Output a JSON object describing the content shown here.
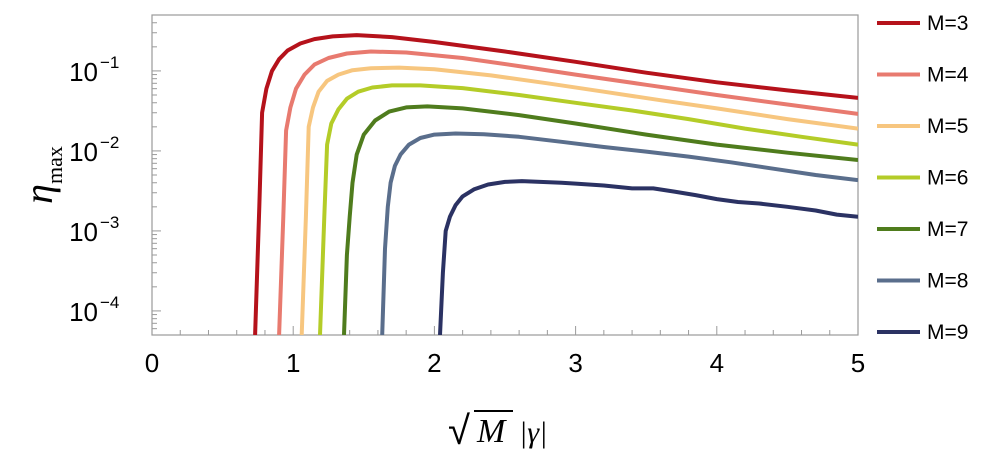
{
  "chart_data": {
    "type": "line",
    "x_label": {
      "sqrt_symbol": "√",
      "radicand": "M",
      "rest": "|γ|"
    },
    "y_label": {
      "main": "η",
      "subscript": "max"
    },
    "xlim": [
      0,
      5
    ],
    "ylim": [
      5e-05,
      0.5
    ],
    "y_scale": "log",
    "x_ticks": [
      "0",
      "1",
      "2",
      "3",
      "4",
      "5"
    ],
    "y_ticks": [
      {
        "base": "10",
        "exp": "−1"
      },
      {
        "base": "10",
        "exp": "−2"
      },
      {
        "base": "10",
        "exp": "−3"
      },
      {
        "base": "10",
        "exp": "−4"
      }
    ],
    "grid": false,
    "legend_position": "right",
    "series": [
      {
        "name": "M=3",
        "color": "#b5121b",
        "x": [
          0.73,
          0.76,
          0.78,
          0.81,
          0.85,
          0.9,
          0.96,
          1.05,
          1.15,
          1.28,
          1.45,
          1.7,
          2.0,
          2.5,
          3.0,
          3.5,
          4.0,
          4.5,
          5.0
        ],
        "y": [
          5e-05,
          0.002,
          0.03,
          0.06,
          0.1,
          0.14,
          0.18,
          0.22,
          0.25,
          0.27,
          0.28,
          0.265,
          0.23,
          0.175,
          0.13,
          0.095,
          0.072,
          0.057,
          0.046
        ]
      },
      {
        "name": "M=4",
        "color": "#e87a6f",
        "x": [
          0.9,
          0.93,
          0.95,
          0.98,
          1.02,
          1.08,
          1.15,
          1.25,
          1.38,
          1.55,
          1.8,
          2.2,
          2.6,
          3.0,
          3.5,
          4.0,
          4.5,
          5.0
        ],
        "y": [
          5e-05,
          0.0015,
          0.018,
          0.035,
          0.06,
          0.09,
          0.12,
          0.145,
          0.165,
          0.175,
          0.17,
          0.145,
          0.115,
          0.09,
          0.067,
          0.05,
          0.038,
          0.029
        ]
      },
      {
        "name": "M=5",
        "color": "#f7c67f",
        "x": [
          1.06,
          1.09,
          1.11,
          1.14,
          1.18,
          1.24,
          1.32,
          1.42,
          1.55,
          1.75,
          2.0,
          2.4,
          2.8,
          3.2,
          3.6,
          4.0,
          4.5,
          5.0
        ],
        "y": [
          5e-05,
          0.0015,
          0.02,
          0.035,
          0.055,
          0.075,
          0.09,
          0.102,
          0.108,
          0.11,
          0.105,
          0.088,
          0.07,
          0.055,
          0.043,
          0.034,
          0.025,
          0.019
        ]
      },
      {
        "name": "M=6",
        "color": "#b4cc28",
        "x": [
          1.19,
          1.22,
          1.24,
          1.27,
          1.32,
          1.38,
          1.46,
          1.56,
          1.7,
          1.9,
          2.2,
          2.6,
          3.0,
          3.4,
          3.8,
          4.2,
          4.6,
          5.0
        ],
        "y": [
          5e-05,
          0.0015,
          0.012,
          0.022,
          0.033,
          0.045,
          0.055,
          0.062,
          0.066,
          0.066,
          0.061,
          0.05,
          0.04,
          0.032,
          0.025,
          0.019,
          0.015,
          0.012
        ]
      },
      {
        "name": "M=7",
        "color": "#4f7c1d",
        "x": [
          1.36,
          1.38,
          1.4,
          1.42,
          1.45,
          1.5,
          1.58,
          1.68,
          1.8,
          1.95,
          2.2,
          2.6,
          3.0,
          3.5,
          4.0,
          4.5,
          5.0
        ],
        "y": [
          5e-05,
          0.0005,
          0.0015,
          0.004,
          0.009,
          0.016,
          0.024,
          0.031,
          0.035,
          0.036,
          0.034,
          0.028,
          0.022,
          0.016,
          0.012,
          0.0095,
          0.0077
        ]
      },
      {
        "name": "M=8",
        "color": "#5a6e8c",
        "x": [
          1.63,
          1.65,
          1.67,
          1.69,
          1.72,
          1.76,
          1.82,
          1.9,
          2.0,
          2.15,
          2.35,
          2.6,
          2.9,
          3.2,
          3.5,
          3.8,
          4.1,
          4.4,
          4.7,
          5.0
        ],
        "y": [
          5e-05,
          0.0006,
          0.002,
          0.004,
          0.0065,
          0.009,
          0.012,
          0.0145,
          0.016,
          0.0165,
          0.0162,
          0.015,
          0.013,
          0.0112,
          0.0098,
          0.0085,
          0.0072,
          0.006,
          0.005,
          0.0043
        ]
      },
      {
        "name": "M=9",
        "color": "#2b3263",
        "x": [
          2.04,
          2.06,
          2.08,
          2.11,
          2.15,
          2.2,
          2.28,
          2.38,
          2.5,
          2.62,
          2.75,
          2.9,
          3.0,
          3.2,
          3.4,
          3.55,
          3.7,
          3.85,
          4.0,
          4.15,
          4.3,
          4.5,
          4.7,
          4.85,
          5.0
        ],
        "y": [
          5e-05,
          0.0003,
          0.001,
          0.0015,
          0.0021,
          0.0027,
          0.0033,
          0.0038,
          0.0041,
          0.0042,
          0.0041,
          0.004,
          0.0039,
          0.0037,
          0.0034,
          0.0034,
          0.0031,
          0.0028,
          0.0025,
          0.0023,
          0.0022,
          0.002,
          0.0018,
          0.0016,
          0.0015
        ]
      }
    ]
  }
}
